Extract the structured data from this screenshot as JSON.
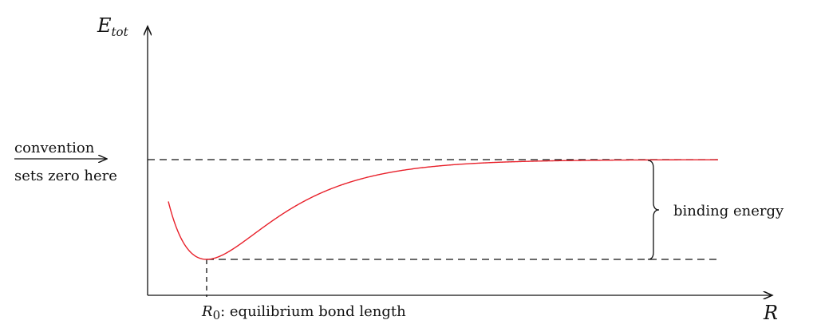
{
  "diagram": {
    "y_axis_label": {
      "base": "E",
      "subscript": "tot"
    },
    "x_axis_label": "R",
    "convention_note": [
      "convention",
      "sets zero here"
    ],
    "binding_label": "binding energy",
    "r0_label": {
      "base": "R",
      "subscript": "0",
      "text": ": equilibrium bond length"
    },
    "curve_color": "#e8202a",
    "line_color": "#111111",
    "curve_shape": "Morse-like potential well: steep repulsive wall, minimum at R0, asymptote to zero"
  }
}
